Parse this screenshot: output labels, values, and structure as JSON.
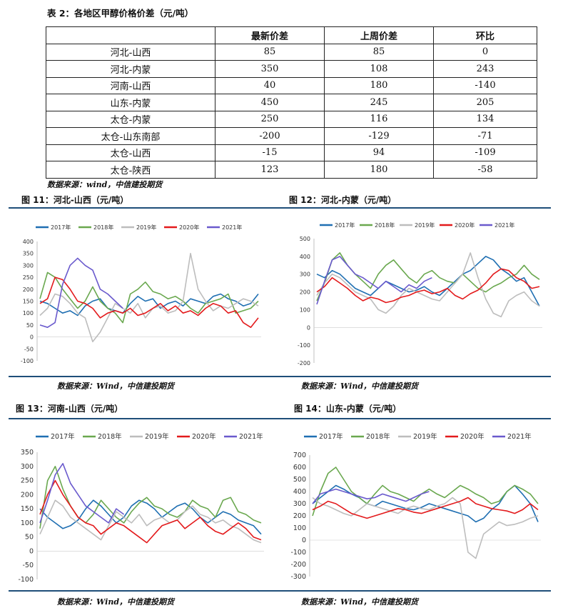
{
  "table": {
    "title": "表 2：各地区甲醇价格价差（元/吨）",
    "headers": [
      "",
      "最新价差",
      "上周价差",
      "环比"
    ],
    "rows": [
      [
        "河北-山西",
        "85",
        "85",
        "0"
      ],
      [
        "河北-内蒙",
        "350",
        "108",
        "243"
      ],
      [
        "河南-山西",
        "40",
        "180",
        "-140"
      ],
      [
        "山东-内蒙",
        "450",
        "245",
        "205"
      ],
      [
        "太仓-内蒙",
        "250",
        "116",
        "134"
      ],
      [
        "太仓-山东南部",
        "-200",
        "-129",
        "-71"
      ],
      [
        "太仓-山西",
        "-15",
        "94",
        "-109"
      ],
      [
        "太仓-陕西",
        "123",
        "180",
        "-58"
      ]
    ],
    "source": "数据来源：wind，中信建投期货"
  },
  "figures": [
    {
      "title": "图 11：河北-山西（元/吨）",
      "source": "数据来源：Wind，中信建投期货"
    },
    {
      "title": "图 12：河北-内蒙（元/吨）",
      "source": ""
    },
    {
      "title": "图 13：河南-山西（元/吨）",
      "source": "数据来源：Wind，中信建投期货"
    },
    {
      "title": "图 14：山东-内蒙（元/吨）",
      "source": "数据来源：Wind，中信建投期货"
    }
  ],
  "fig12_source": "数据来源：Wind，中信建投期货",
  "colors": {
    "2017年": "#1f6fb2",
    "2018年": "#6aa84f",
    "2019年": "#bdbdbd",
    "2020年": "#e31a1c",
    "2021年": "#6a5acd",
    "rule": "#1f4e79"
  },
  "chart_data": [
    {
      "type": "line",
      "series_names": [
        "2017年",
        "2018年",
        "2019年",
        "2020年",
        "2021年"
      ],
      "ylim": [
        -100,
        400
      ],
      "yticks": [
        -100,
        -50,
        0,
        50,
        100,
        150,
        200,
        250,
        300,
        350,
        400
      ],
      "series": [
        {
          "name": "2017年",
          "values": [
            150,
            140,
            120,
            100,
            110,
            90,
            130,
            150,
            160,
            120,
            110,
            100,
            140,
            170,
            150,
            160,
            120,
            140,
            150,
            130,
            160,
            150,
            140,
            170,
            180,
            160,
            150,
            130,
            140,
            180
          ]
        },
        {
          "name": "2018年",
          "values": [
            160,
            270,
            250,
            200,
            160,
            120,
            150,
            210,
            150,
            120,
            100,
            60,
            180,
            200,
            230,
            190,
            180,
            160,
            170,
            150,
            120,
            100,
            140,
            150,
            160,
            180,
            100,
            110,
            120,
            150
          ]
        },
        {
          "name": "2019年",
          "values": [
            90,
            120,
            180,
            170,
            140,
            100,
            80,
            -20,
            20,
            80,
            140,
            120,
            100,
            140,
            80,
            120,
            130,
            100,
            110,
            150,
            350,
            200,
            150,
            110,
            130,
            120,
            140,
            160,
            150,
            130
          ]
        },
        {
          "name": "2020年",
          "values": [
            140,
            160,
            250,
            240,
            200,
            150,
            140,
            120,
            80,
            100,
            110,
            100,
            120,
            90,
            100,
            120,
            140,
            110,
            130,
            100,
            110,
            90,
            120,
            140,
            130,
            100,
            110,
            60,
            40,
            80
          ]
        },
        {
          "name": "2021年",
          "values": [
            50,
            40,
            60,
            220,
            300,
            330,
            300,
            280,
            200,
            180,
            150,
            120
          ]
        }
      ]
    },
    {
      "type": "line",
      "series_names": [
        "2017年",
        "2018年",
        "2019年",
        "2020年",
        "2021年"
      ],
      "ylim": [
        -200,
        500
      ],
      "yticks": [
        -200,
        -100,
        0,
        100,
        200,
        300,
        400,
        500
      ],
      "series": [
        {
          "name": "2017年",
          "values": [
            300,
            280,
            320,
            300,
            260,
            220,
            200,
            180,
            220,
            260,
            240,
            220,
            200,
            210,
            230,
            200,
            180,
            220,
            260,
            300,
            320,
            360,
            400,
            380,
            330,
            300,
            260,
            280,
            200,
            120
          ]
        },
        {
          "name": "2018年",
          "values": [
            150,
            250,
            380,
            420,
            350,
            300,
            260,
            220,
            300,
            350,
            380,
            330,
            280,
            250,
            300,
            320,
            280,
            260,
            250,
            300,
            260,
            220,
            200,
            230,
            250,
            280,
            300,
            350,
            300,
            270
          ]
        },
        {
          "name": "2019年",
          "values": [
            180,
            250,
            300,
            280,
            240,
            200,
            180,
            160,
            100,
            80,
            120,
            180,
            220,
            200,
            180,
            160,
            150,
            200,
            250,
            300,
            420,
            280,
            160,
            80,
            60,
            150,
            180,
            200,
            150,
            120
          ]
        },
        {
          "name": "2020年",
          "values": [
            200,
            230,
            280,
            250,
            220,
            180,
            150,
            170,
            160,
            140,
            150,
            170,
            180,
            200,
            210,
            190,
            200,
            220,
            180,
            160,
            190,
            210,
            250,
            300,
            330,
            320,
            280,
            260,
            220,
            230
          ]
        },
        {
          "name": "2021年",
          "values": [
            130,
            260,
            380,
            400,
            350,
            300,
            280,
            250,
            220,
            260,
            230,
            200,
            240,
            220,
            260,
            280
          ]
        }
      ]
    },
    {
      "type": "line",
      "series_names": [
        "2017年",
        "2018年",
        "2019年",
        "2020年",
        "2021年"
      ],
      "ylim": [
        -100,
        350
      ],
      "yticks": [
        -100,
        -50,
        0,
        50,
        100,
        150,
        200,
        250,
        300,
        350
      ],
      "series": [
        {
          "name": "2017年",
          "values": [
            150,
            120,
            100,
            80,
            90,
            110,
            150,
            180,
            160,
            130,
            100,
            120,
            160,
            180,
            170,
            150,
            120,
            140,
            160,
            170,
            150,
            120,
            100,
            120,
            140,
            130,
            110,
            100,
            90,
            60
          ]
        },
        {
          "name": "2018年",
          "values": [
            80,
            250,
            300,
            220,
            160,
            120,
            100,
            130,
            180,
            150,
            120,
            100,
            140,
            170,
            190,
            160,
            150,
            130,
            120,
            140,
            180,
            160,
            150,
            120,
            180,
            190,
            140,
            130,
            110,
            100
          ]
        },
        {
          "name": "2019年",
          "values": [
            60,
            120,
            180,
            160,
            120,
            100,
            80,
            60,
            40,
            90,
            140,
            120,
            100,
            130,
            90,
            110,
            120,
            100,
            110,
            140,
            160,
            130,
            120,
            100,
            110,
            90,
            80,
            60,
            40,
            30
          ]
        },
        {
          "name": "2020年",
          "values": [
            130,
            200,
            250,
            200,
            160,
            120,
            100,
            90,
            60,
            80,
            100,
            90,
            70,
            50,
            30,
            60,
            90,
            100,
            110,
            80,
            100,
            120,
            90,
            70,
            60,
            80,
            100,
            80,
            50,
            40
          ]
        },
        {
          "name": "2021年",
          "values": [
            100,
            180,
            270,
            310,
            240,
            200,
            160,
            140,
            120,
            100,
            150,
            130
          ]
        }
      ]
    },
    {
      "type": "line",
      "series_names": [
        "2017年",
        "2018年",
        "2019年",
        "2020年",
        "2021年"
      ],
      "ylim": [
        -300,
        700
      ],
      "yticks": [
        -300,
        -200,
        -100,
        0,
        100,
        200,
        300,
        400,
        500,
        600,
        700
      ],
      "series": [
        {
          "name": "2017年",
          "values": [
            300,
            350,
            400,
            450,
            420,
            380,
            350,
            300,
            280,
            320,
            300,
            280,
            260,
            250,
            270,
            300,
            280,
            260,
            240,
            220,
            200,
            150,
            180,
            250,
            300,
            400,
            450,
            380,
            300,
            150
          ]
        },
        {
          "name": "2018年",
          "values": [
            200,
            400,
            550,
            600,
            500,
            400,
            350,
            300,
            380,
            450,
            400,
            380,
            350,
            320,
            380,
            420,
            380,
            350,
            400,
            450,
            420,
            380,
            350,
            300,
            320,
            400,
            450,
            420,
            380,
            300
          ]
        },
        {
          "name": "2019年",
          "values": [
            350,
            300,
            280,
            250,
            220,
            200,
            250,
            300,
            280,
            260,
            240,
            220,
            260,
            280,
            260,
            250,
            280,
            300,
            350,
            300,
            -100,
            -150,
            50,
            100,
            150,
            120,
            130,
            150,
            180,
            200
          ]
        },
        {
          "name": "2020年",
          "values": [
            250,
            280,
            320,
            300,
            260,
            220,
            200,
            180,
            200,
            220,
            240,
            260,
            250,
            230,
            220,
            240,
            260,
            280,
            300,
            320,
            350,
            300,
            280,
            260,
            250,
            240,
            220,
            250,
            300,
            250
          ]
        },
        {
          "name": "2021年",
          "values": [
            300,
            380,
            400,
            420,
            400,
            380,
            360,
            340,
            350,
            380,
            360,
            340,
            320,
            350,
            380,
            400
          ]
        }
      ]
    }
  ]
}
